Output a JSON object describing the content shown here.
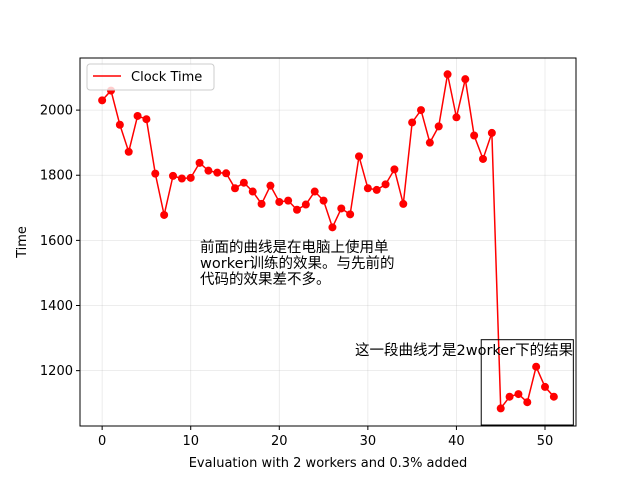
{
  "chart_data": {
    "type": "line",
    "xlabel": "Evaluation with 2 workers and 0.3% added",
    "ylabel": "Time",
    "xlim": [
      -2.5,
      53.5
    ],
    "ylim": [
      1030,
      2160
    ],
    "xticks": [
      0,
      10,
      20,
      30,
      40,
      50
    ],
    "yticks": [
      1200,
      1400,
      1600,
      1800,
      2000
    ],
    "grid": true,
    "legend_position": "top-left",
    "series": [
      {
        "name": "Clock Time",
        "color": "#ff0000",
        "x": [
          0,
          1,
          2,
          3,
          4,
          5,
          6,
          7,
          8,
          9,
          10,
          11,
          12,
          13,
          14,
          15,
          16,
          17,
          18,
          19,
          20,
          21,
          22,
          23,
          24,
          25,
          26,
          27,
          28,
          29,
          30,
          31,
          32,
          33,
          34,
          35,
          36,
          37,
          38,
          39,
          40,
          41,
          42,
          43,
          44,
          45,
          46,
          47,
          48,
          49,
          50,
          51
        ],
        "y": [
          2030,
          2060,
          1955,
          1872,
          1982,
          1972,
          1805,
          1678,
          1798,
          1790,
          1792,
          1838,
          1814,
          1808,
          1806,
          1760,
          1777,
          1750,
          1712,
          1768,
          1718,
          1722,
          1694,
          1710,
          1750,
          1722,
          1640,
          1698,
          1680,
          1858,
          1760,
          1755,
          1772,
          1818,
          1712,
          1962,
          2000,
          1900,
          1950,
          2110,
          1978,
          2095,
          1922,
          1850,
          1930,
          1084,
          1120,
          1128,
          1103,
          1212,
          1150,
          1120
        ]
      }
    ],
    "annotations": [
      {
        "lines": [
          "前面的曲线是在电脑上使用单",
          "worker训练的效果。与先前的",
          "代码的效果差不多。"
        ]
      },
      {
        "lines": [
          "这一段曲线才是2worker下的结果"
        ]
      }
    ],
    "highlight_box": {
      "x": [
        42.8,
        53.2
      ],
      "y": [
        1033,
        1295
      ]
    }
  }
}
